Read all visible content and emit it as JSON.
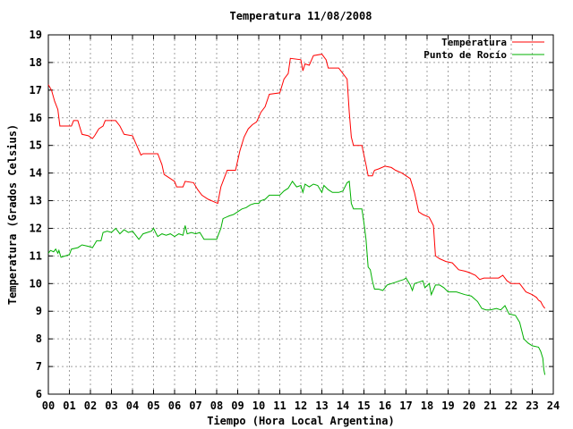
{
  "colors": {
    "temperature": "#ff0000",
    "dew_point": "#00b000",
    "grid": "#a0a0a0"
  },
  "chart_data": {
    "type": "line",
    "title": "Temperatura 11/08/2008",
    "xlabel": "Tiempo (Hora Local Argentina)",
    "ylabel": "Temperatura (Grados Celsius)",
    "xlim": [
      0,
      24
    ],
    "ylim": [
      6,
      19
    ],
    "x_ticks": [
      "00",
      "01",
      "02",
      "03",
      "04",
      "05",
      "06",
      "07",
      "08",
      "09",
      "10",
      "11",
      "12",
      "13",
      "14",
      "15",
      "16",
      "17",
      "18",
      "19",
      "20",
      "21",
      "22",
      "23",
      "24"
    ],
    "y_ticks": [
      "6",
      "7",
      "8",
      "9",
      "10",
      "11",
      "12",
      "13",
      "14",
      "15",
      "16",
      "17",
      "18",
      "19"
    ],
    "grid": true,
    "legend_position": "top-right",
    "series": [
      {
        "name": "Temperatura",
        "color": "#ff0000",
        "points": [
          [
            0.0,
            17.2
          ],
          [
            0.15,
            17.0
          ],
          [
            0.3,
            16.6
          ],
          [
            0.45,
            16.3
          ],
          [
            0.55,
            15.7
          ],
          [
            0.9,
            15.7
          ],
          [
            1.1,
            15.7
          ],
          [
            1.2,
            15.9
          ],
          [
            1.4,
            15.9
          ],
          [
            1.6,
            15.4
          ],
          [
            1.9,
            15.35
          ],
          [
            2.1,
            15.25
          ],
          [
            2.2,
            15.35
          ],
          [
            2.4,
            15.6
          ],
          [
            2.6,
            15.7
          ],
          [
            2.7,
            15.9
          ],
          [
            3.2,
            15.9
          ],
          [
            3.4,
            15.7
          ],
          [
            3.6,
            15.4
          ],
          [
            4.0,
            15.35
          ],
          [
            4.2,
            15.0
          ],
          [
            4.4,
            14.65
          ],
          [
            4.5,
            14.7
          ],
          [
            5.2,
            14.7
          ],
          [
            5.4,
            14.3
          ],
          [
            5.5,
            13.95
          ],
          [
            5.8,
            13.8
          ],
          [
            6.0,
            13.7
          ],
          [
            6.1,
            13.5
          ],
          [
            6.4,
            13.5
          ],
          [
            6.5,
            13.7
          ],
          [
            6.9,
            13.65
          ],
          [
            7.1,
            13.4
          ],
          [
            7.3,
            13.2
          ],
          [
            7.6,
            13.05
          ],
          [
            7.9,
            12.95
          ],
          [
            8.05,
            12.9
          ],
          [
            8.2,
            13.5
          ],
          [
            8.4,
            13.9
          ],
          [
            8.5,
            14.1
          ],
          [
            8.9,
            14.1
          ],
          [
            9.1,
            14.8
          ],
          [
            9.3,
            15.3
          ],
          [
            9.5,
            15.6
          ],
          [
            9.7,
            15.75
          ],
          [
            9.9,
            15.85
          ],
          [
            10.1,
            16.2
          ],
          [
            10.3,
            16.4
          ],
          [
            10.5,
            16.85
          ],
          [
            11.0,
            16.9
          ],
          [
            11.2,
            17.4
          ],
          [
            11.4,
            17.6
          ],
          [
            11.5,
            18.15
          ],
          [
            12.0,
            18.1
          ],
          [
            12.1,
            17.7
          ],
          [
            12.2,
            17.95
          ],
          [
            12.4,
            17.9
          ],
          [
            12.6,
            18.25
          ],
          [
            13.0,
            18.3
          ],
          [
            13.2,
            18.1
          ],
          [
            13.3,
            17.8
          ],
          [
            13.8,
            17.8
          ],
          [
            14.0,
            17.6
          ],
          [
            14.2,
            17.4
          ],
          [
            14.3,
            16.2
          ],
          [
            14.4,
            15.3
          ],
          [
            14.5,
            15.0
          ],
          [
            14.9,
            15.0
          ],
          [
            15.1,
            14.3
          ],
          [
            15.2,
            13.9
          ],
          [
            15.4,
            13.9
          ],
          [
            15.5,
            14.1
          ],
          [
            15.7,
            14.15
          ],
          [
            16.0,
            14.25
          ],
          [
            16.3,
            14.2
          ],
          [
            16.5,
            14.1
          ],
          [
            16.8,
            14.0
          ],
          [
            17.0,
            13.9
          ],
          [
            17.2,
            13.8
          ],
          [
            17.4,
            13.3
          ],
          [
            17.6,
            12.6
          ],
          [
            17.8,
            12.5
          ],
          [
            18.1,
            12.4
          ],
          [
            18.3,
            12.1
          ],
          [
            18.4,
            11.0
          ],
          [
            18.6,
            10.9
          ],
          [
            18.9,
            10.8
          ],
          [
            19.2,
            10.75
          ],
          [
            19.5,
            10.5
          ],
          [
            19.8,
            10.45
          ],
          [
            20.0,
            10.4
          ],
          [
            20.3,
            10.3
          ],
          [
            20.5,
            10.15
          ],
          [
            20.7,
            10.2
          ],
          [
            21.2,
            10.2
          ],
          [
            21.4,
            10.2
          ],
          [
            21.6,
            10.3
          ],
          [
            21.8,
            10.1
          ],
          [
            22.0,
            10.0
          ],
          [
            22.4,
            10.0
          ],
          [
            22.5,
            9.9
          ],
          [
            22.7,
            9.7
          ],
          [
            23.0,
            9.6
          ],
          [
            23.2,
            9.5
          ],
          [
            23.3,
            9.4
          ],
          [
            23.4,
            9.35
          ],
          [
            23.5,
            9.2
          ],
          [
            23.6,
            9.1
          ]
        ]
      },
      {
        "name": "Punto de Rocío",
        "color": "#00b000",
        "points": [
          [
            0.0,
            11.1
          ],
          [
            0.1,
            11.2
          ],
          [
            0.25,
            11.15
          ],
          [
            0.35,
            11.25
          ],
          [
            0.45,
            11.1
          ],
          [
            0.5,
            11.2
          ],
          [
            0.6,
            10.95
          ],
          [
            0.8,
            11.0
          ],
          [
            1.0,
            11.05
          ],
          [
            1.1,
            11.25
          ],
          [
            1.4,
            11.3
          ],
          [
            1.6,
            11.4
          ],
          [
            1.9,
            11.35
          ],
          [
            2.1,
            11.3
          ],
          [
            2.3,
            11.55
          ],
          [
            2.5,
            11.55
          ],
          [
            2.6,
            11.85
          ],
          [
            2.8,
            11.9
          ],
          [
            3.0,
            11.85
          ],
          [
            3.2,
            12.0
          ],
          [
            3.4,
            11.8
          ],
          [
            3.6,
            11.95
          ],
          [
            3.8,
            11.85
          ],
          [
            4.0,
            11.9
          ],
          [
            4.2,
            11.7
          ],
          [
            4.3,
            11.6
          ],
          [
            4.5,
            11.8
          ],
          [
            4.7,
            11.85
          ],
          [
            4.9,
            11.9
          ],
          [
            5.0,
            12.0
          ],
          [
            5.1,
            11.85
          ],
          [
            5.2,
            11.7
          ],
          [
            5.4,
            11.8
          ],
          [
            5.6,
            11.75
          ],
          [
            5.8,
            11.8
          ],
          [
            6.0,
            11.7
          ],
          [
            6.2,
            11.8
          ],
          [
            6.4,
            11.75
          ],
          [
            6.5,
            12.1
          ],
          [
            6.6,
            11.8
          ],
          [
            6.8,
            11.85
          ],
          [
            7.0,
            11.8
          ],
          [
            7.2,
            11.85
          ],
          [
            7.4,
            11.6
          ],
          [
            7.6,
            11.6
          ],
          [
            8.0,
            11.6
          ],
          [
            8.1,
            11.8
          ],
          [
            8.2,
            12.0
          ],
          [
            8.3,
            12.35
          ],
          [
            8.6,
            12.45
          ],
          [
            8.8,
            12.5
          ],
          [
            9.0,
            12.6
          ],
          [
            9.2,
            12.7
          ],
          [
            9.4,
            12.75
          ],
          [
            9.6,
            12.85
          ],
          [
            9.8,
            12.9
          ],
          [
            10.0,
            12.9
          ],
          [
            10.1,
            13.0
          ],
          [
            10.3,
            13.05
          ],
          [
            10.5,
            13.2
          ],
          [
            10.7,
            13.2
          ],
          [
            11.0,
            13.2
          ],
          [
            11.2,
            13.35
          ],
          [
            11.4,
            13.45
          ],
          [
            11.6,
            13.7
          ],
          [
            11.8,
            13.5
          ],
          [
            12.0,
            13.55
          ],
          [
            12.1,
            13.3
          ],
          [
            12.2,
            13.6
          ],
          [
            12.4,
            13.5
          ],
          [
            12.6,
            13.6
          ],
          [
            12.8,
            13.55
          ],
          [
            13.0,
            13.3
          ],
          [
            13.1,
            13.55
          ],
          [
            13.3,
            13.4
          ],
          [
            13.5,
            13.3
          ],
          [
            13.8,
            13.3
          ],
          [
            14.0,
            13.35
          ],
          [
            14.2,
            13.65
          ],
          [
            14.3,
            13.7
          ],
          [
            14.4,
            12.9
          ],
          [
            14.5,
            12.7
          ],
          [
            14.9,
            12.7
          ],
          [
            15.0,
            12.2
          ],
          [
            15.1,
            11.6
          ],
          [
            15.2,
            10.6
          ],
          [
            15.3,
            10.5
          ],
          [
            15.4,
            10.1
          ],
          [
            15.5,
            9.8
          ],
          [
            15.7,
            9.8
          ],
          [
            15.9,
            9.75
          ],
          [
            16.1,
            9.95
          ],
          [
            16.3,
            10.0
          ],
          [
            16.5,
            10.05
          ],
          [
            16.7,
            10.1
          ],
          [
            16.9,
            10.15
          ],
          [
            17.0,
            10.2
          ],
          [
            17.2,
            9.95
          ],
          [
            17.3,
            9.75
          ],
          [
            17.4,
            10.0
          ],
          [
            17.6,
            10.05
          ],
          [
            17.8,
            10.1
          ],
          [
            17.9,
            9.85
          ],
          [
            18.1,
            10.0
          ],
          [
            18.2,
            9.6
          ],
          [
            18.4,
            9.95
          ],
          [
            18.6,
            9.95
          ],
          [
            18.8,
            9.85
          ],
          [
            19.0,
            9.7
          ],
          [
            19.4,
            9.7
          ],
          [
            19.8,
            9.6
          ],
          [
            20.1,
            9.55
          ],
          [
            20.4,
            9.35
          ],
          [
            20.6,
            9.1
          ],
          [
            20.8,
            9.05
          ],
          [
            21.0,
            9.05
          ],
          [
            21.3,
            9.1
          ],
          [
            21.5,
            9.05
          ],
          [
            21.7,
            9.2
          ],
          [
            21.9,
            8.9
          ],
          [
            22.2,
            8.85
          ],
          [
            22.4,
            8.6
          ],
          [
            22.6,
            8.0
          ],
          [
            22.8,
            7.85
          ],
          [
            23.0,
            7.75
          ],
          [
            23.3,
            7.7
          ],
          [
            23.4,
            7.55
          ],
          [
            23.5,
            7.3
          ],
          [
            23.55,
            6.9
          ],
          [
            23.6,
            6.7
          ]
        ]
      }
    ]
  }
}
